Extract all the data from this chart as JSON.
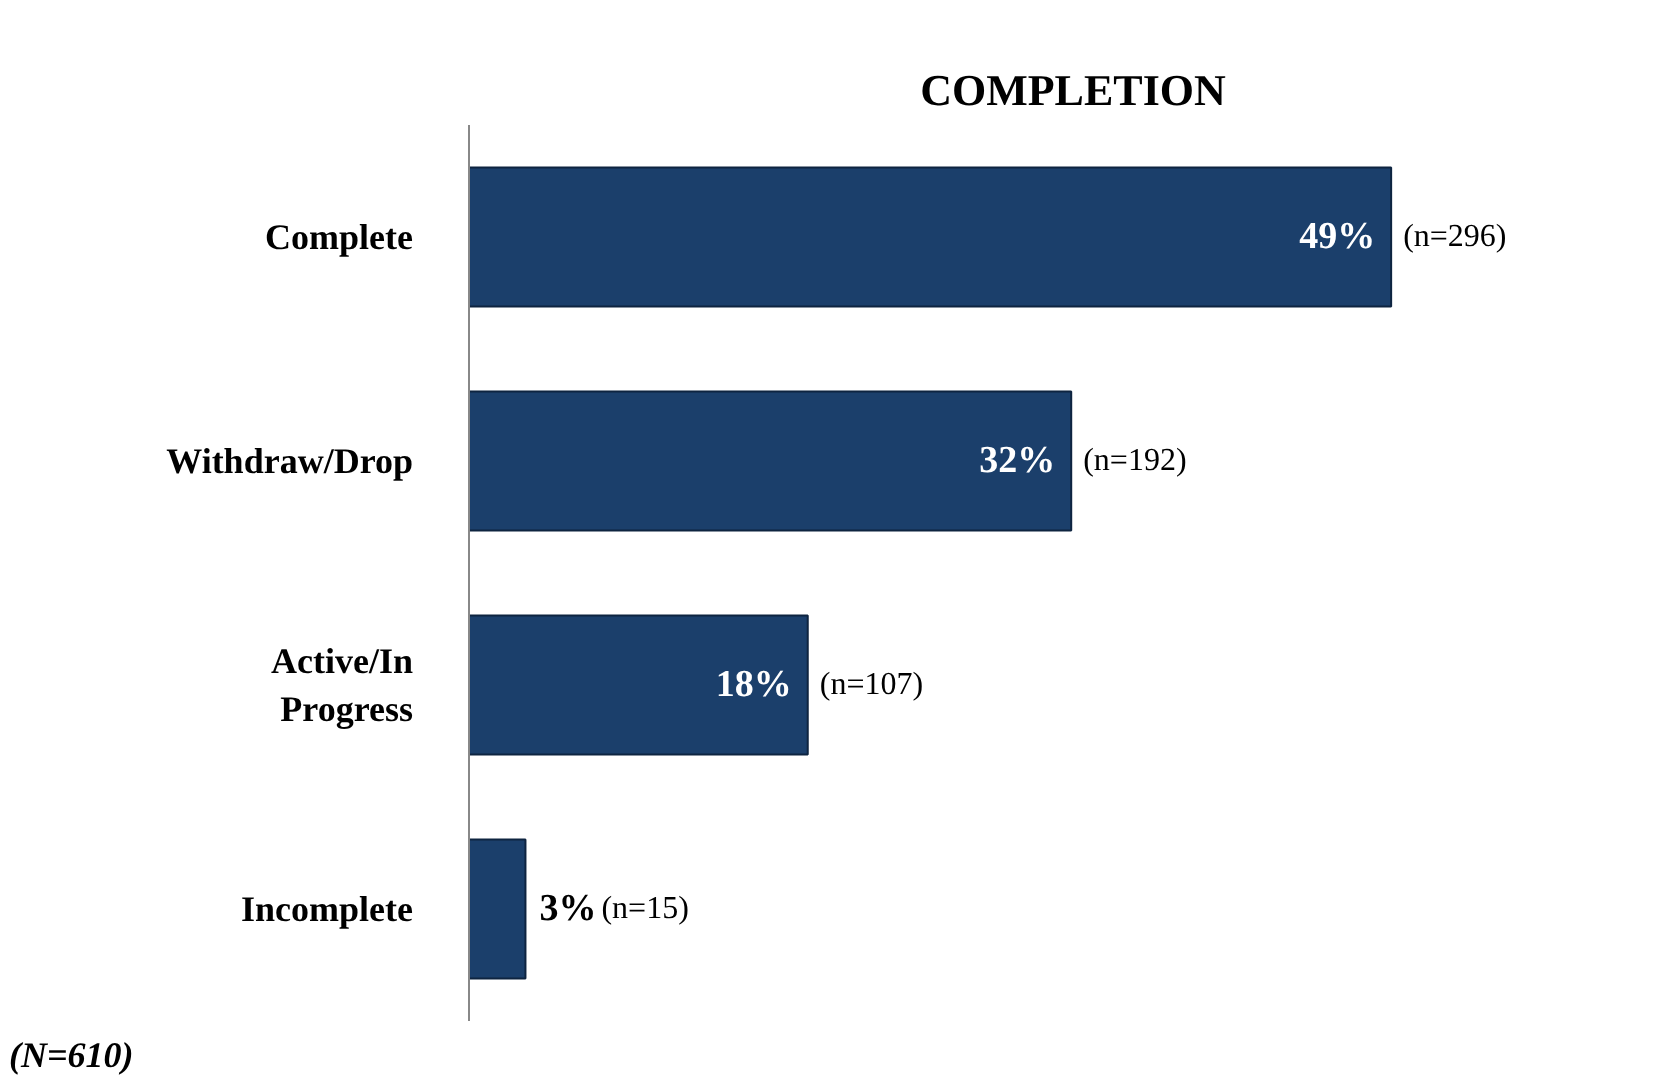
{
  "chart_data": {
    "type": "bar",
    "orientation": "horizontal",
    "title": "COMPLETION",
    "categories": [
      "Complete",
      "Withdraw/Drop",
      "Active/In Progress",
      "Incomplete"
    ],
    "values": [
      49,
      32,
      18,
      3
    ],
    "value_labels": [
      "49%",
      "32%",
      "18%",
      "3%"
    ],
    "color": "#1b3f6b",
    "annotations": [
      {
        "text": "(n=296)",
        "x": 49,
        "y": "Complete"
      },
      {
        "text": "(n=192)",
        "x": 32,
        "y": "Withdraw/Drop"
      },
      {
        "text": "(n=107)",
        "x": 18,
        "y": "Active/In Progress"
      },
      {
        "text": "(n=15)",
        "x": 3,
        "y": "Incomplete"
      },
      "(N=610)"
    ],
    "grid": false
  }
}
